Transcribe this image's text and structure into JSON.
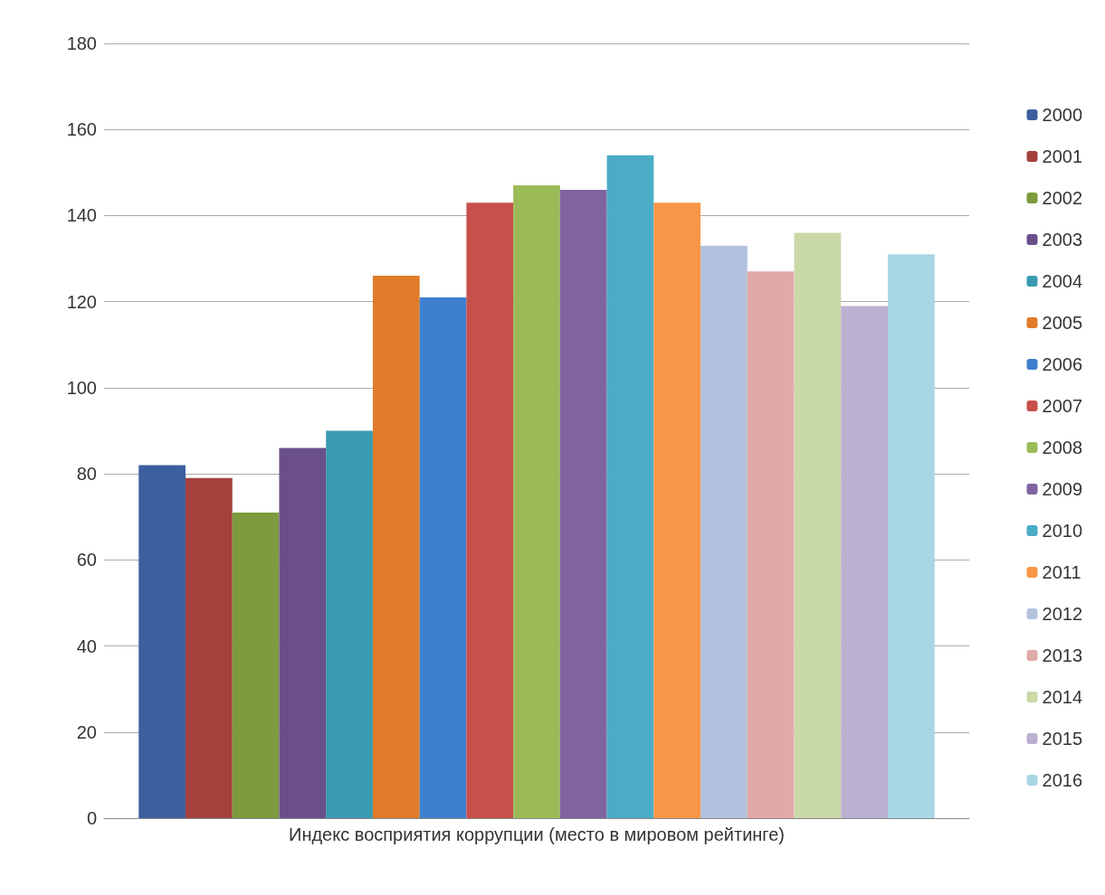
{
  "chart_data": {
    "type": "bar",
    "categories": [
      "Индекс восприятия коррупции (место в мировом рейтинге)"
    ],
    "series": [
      {
        "name": "2000",
        "color": "#3d5f9e",
        "values": [
          82
        ]
      },
      {
        "name": "2001",
        "color": "#a4413d",
        "values": [
          79
        ]
      },
      {
        "name": "2002",
        "color": "#7d9a3d",
        "values": [
          71
        ]
      },
      {
        "name": "2003",
        "color": "#6a4f8c",
        "values": [
          86
        ]
      },
      {
        "name": "2004",
        "color": "#3a9ab0",
        "values": [
          90
        ]
      },
      {
        "name": "2005",
        "color": "#e07b2a",
        "values": [
          126
        ]
      },
      {
        "name": "2006",
        "color": "#3f7fcf",
        "values": [
          121
        ]
      },
      {
        "name": "2007",
        "color": "#c8504a",
        "values": [
          143
        ]
      },
      {
        "name": "2008",
        "color": "#9bbb59",
        "values": [
          147
        ]
      },
      {
        "name": "2009",
        "color": "#8064a2",
        "values": [
          146
        ]
      },
      {
        "name": "2010",
        "color": "#4bacc6",
        "values": [
          154
        ]
      },
      {
        "name": "2011",
        "color": "#f79646",
        "values": [
          143
        ]
      },
      {
        "name": "2012",
        "color": "#b3c2df",
        "values": [
          133
        ]
      },
      {
        "name": "2013",
        "color": "#e0aaa8",
        "values": [
          127
        ]
      },
      {
        "name": "2014",
        "color": "#c9d9a8",
        "values": [
          136
        ]
      },
      {
        "name": "2015",
        "color": "#bcb0d0",
        "values": [
          119
        ]
      },
      {
        "name": "2016",
        "color": "#a9d6e3",
        "values": [
          131
        ]
      }
    ],
    "ylim": [
      0,
      180
    ],
    "yticks": [
      0,
      20,
      40,
      60,
      80,
      100,
      120,
      140,
      160,
      180
    ],
    "grid": "y",
    "legend": "right"
  }
}
